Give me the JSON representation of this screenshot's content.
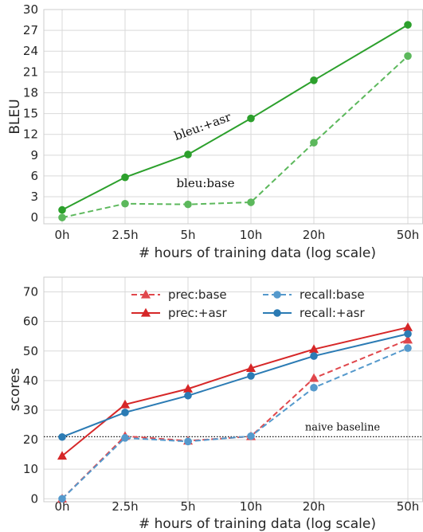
{
  "chart_data": [
    {
      "type": "line",
      "categories": [
        "0h",
        "2.5h",
        "5h",
        "10h",
        "20h",
        "50h"
      ],
      "xlabel": "# hours of training data (log scale)",
      "ylabel": "BLEU",
      "ylim": [
        0,
        30
      ],
      "yticks": [
        0,
        3,
        6,
        9,
        12,
        15,
        18,
        21,
        24,
        27,
        30
      ],
      "grid": true,
      "series": [
        {
          "name": "bleu:base",
          "values": [
            0.0,
            2.0,
            1.9,
            2.2,
            10.8,
            23.3
          ],
          "color": "#5cb85c",
          "style": "dashed",
          "marker": "circle"
        },
        {
          "name": "bleu:+asr",
          "values": [
            1.1,
            5.8,
            9.1,
            14.3,
            19.8,
            27.8
          ],
          "color": "#2ca02c",
          "style": "solid",
          "marker": "circle"
        }
      ],
      "annotations": [
        {
          "text": "bleu:+asr",
          "x": "5h",
          "y": 12.6
        },
        {
          "text": "bleu:base",
          "x": "5h",
          "y": 4.4
        }
      ]
    },
    {
      "type": "line",
      "categories": [
        "0h",
        "2.5h",
        "5h",
        "10h",
        "20h",
        "50h"
      ],
      "xlabel": "# hours of training data (log scale)",
      "ylabel": "scores",
      "ylim": [
        0,
        75
      ],
      "yticks": [
        0,
        10,
        20,
        30,
        40,
        50,
        60,
        70
      ],
      "grid": true,
      "legend": "top-center",
      "series": [
        {
          "name": "prec:base",
          "values": [
            0.0,
            21.2,
            19.6,
            21.1,
            40.8,
            53.8
          ],
          "color": "#e0474c",
          "style": "dashed",
          "marker": "triangle"
        },
        {
          "name": "recall:base",
          "values": [
            0.0,
            20.6,
            19.4,
            21.2,
            37.6,
            51.0
          ],
          "color": "#5599cc",
          "style": "dashed",
          "marker": "circle"
        },
        {
          "name": "prec:+asr",
          "values": [
            14.5,
            31.9,
            37.2,
            44.2,
            50.6,
            58.0
          ],
          "color": "#d62728",
          "style": "solid",
          "marker": "triangle"
        },
        {
          "name": "recall:+asr",
          "values": [
            20.9,
            29.2,
            34.9,
            41.6,
            48.3,
            55.8
          ],
          "color": "#2b7bb4",
          "style": "solid",
          "marker": "circle"
        }
      ],
      "reference_line": {
        "label": "naive baseline",
        "y": 21.0
      }
    }
  ]
}
